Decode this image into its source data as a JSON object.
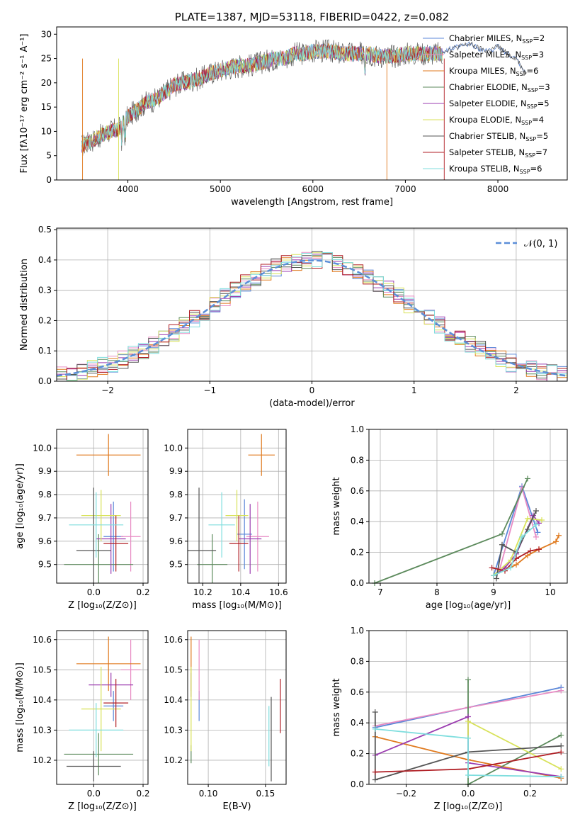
{
  "title": "PLATE=1387, MJD=53118, FIBERID=0422, z=0.082",
  "colors": {
    "Chabrier MILES": "#5b87d8",
    "Salpeter MILES": "#e88cc4",
    "Kroupa MILES": "#e07b20",
    "Chabrier ELODIE": "#5c8a5c",
    "Salpeter ELODIE": "#9b3db0",
    "Kroupa ELODIE": "#d8e25a",
    "Chabrier STELIB": "#555555",
    "Salpeter STELIB": "#b01e24",
    "Kroupa STELIB": "#7fdede"
  },
  "chart_data": [
    {
      "id": "spectrum",
      "type": "line",
      "title": "PLATE=1387, MJD=53118, FIBERID=0422, z=0.082",
      "xlabel": "wavelength [Angstrom, rest frame]",
      "ylabel": "Flux [fλ10⁻¹⁷ erg cm⁻² s⁻¹ A⁻¹]",
      "xlim": [
        3230,
        8750
      ],
      "ylim": [
        0,
        31.5
      ],
      "xticks": [
        "4000",
        "5000",
        "6000",
        "7000",
        "8000"
      ],
      "yticks": [
        "0",
        "5",
        "10",
        "15",
        "20",
        "25",
        "30"
      ],
      "legend_position": "top-right",
      "legend": [
        {
          "label": "Chabrier MILES, N",
          "sub": "SSP",
          "suffix": "=2"
        },
        {
          "label": "Salpeter MILES, N",
          "sub": "SSP",
          "suffix": "=3"
        },
        {
          "label": "Kroupa MILES, N",
          "sub": "SSP",
          "suffix": "=6"
        },
        {
          "label": "Chabrier ELODIE, N",
          "sub": "SSP",
          "suffix": "=3"
        },
        {
          "label": "Salpeter ELODIE, N",
          "sub": "SSP",
          "suffix": "=5"
        },
        {
          "label": "Kroupa ELODIE, N",
          "sub": "SSP",
          "suffix": "=4"
        },
        {
          "label": "Chabrier STELIB, N",
          "sub": "SSP",
          "suffix": "=5"
        },
        {
          "label": "Salpeter STELIB, N",
          "sub": "SSP",
          "suffix": "=7"
        },
        {
          "label": "Kroupa STELIB, N",
          "sub": "SSP",
          "suffix": "=6"
        }
      ],
      "envelope": {
        "x": [
          3500,
          3600,
          3700,
          3800,
          3900,
          4000,
          4100,
          4200,
          4300,
          4400,
          4500,
          4600,
          4700,
          4800,
          4900,
          5000,
          5100,
          5200,
          5300,
          5400,
          5500,
          5600,
          5700,
          5800,
          5900,
          6000,
          6100,
          6200,
          6300,
          6400,
          6500,
          6600,
          6700,
          6800,
          6900,
          7000,
          7100,
          7200,
          7300,
          7400
        ],
        "y": [
          7,
          8,
          9,
          10,
          10.5,
          13,
          14.5,
          16,
          16.5,
          18,
          19.5,
          20,
          20.5,
          21,
          22,
          22.5,
          23,
          23.5,
          23.5,
          24,
          24.5,
          25,
          25,
          26,
          26,
          26.5,
          26.5,
          26.5,
          26,
          26,
          26,
          26,
          25.5,
          25.5,
          25.5,
          26,
          26,
          26,
          26,
          26
        ],
        "model_x": [
          7400,
          7500,
          7600,
          7700,
          7800,
          7900,
          8000,
          8100,
          8200,
          8300
        ],
        "model_y": [
          26.5,
          27,
          27.5,
          28,
          27,
          26.5,
          27.5,
          26,
          25,
          22
        ]
      }
    },
    {
      "id": "residuals",
      "type": "histogram",
      "xlabel": "(data-model)/error",
      "ylabel": "Normed distribution",
      "xlim": [
        -2.5,
        2.5
      ],
      "ylim": [
        0,
        0.505
      ],
      "xticks": [
        "−2",
        "−1",
        "0",
        "1",
        "2"
      ],
      "yticks": [
        "0.0",
        "0.1",
        "0.2",
        "0.3",
        "0.4",
        "0.5"
      ],
      "legend_position": "top-right",
      "reference_label": "𝒩(0, 1)",
      "bin_width": 0.1
    },
    {
      "id": "z-vs-age",
      "type": "scatter",
      "xlabel": "Z [log₁₀(Z/Z⊙)]",
      "ylabel": "age  [log₁₀(age/yr)]",
      "xlim": [
        -0.15,
        0.22
      ],
      "ylim": [
        9.42,
        10.08
      ],
      "xticks": [
        "0.0",
        "0.2"
      ],
      "yticks": [
        "9.5",
        "9.6",
        "9.7",
        "9.8",
        "9.9",
        "10.0"
      ],
      "points": [
        {
          "model": "Chabrier MILES",
          "x": 0.08,
          "xerr": 0.04,
          "y": 9.62,
          "yerr": 0.15
        },
        {
          "model": "Salpeter MILES",
          "x": 0.15,
          "xerr": 0.04,
          "y": 9.62,
          "yerr": 0.15
        },
        {
          "model": "Kroupa MILES",
          "x": 0.06,
          "xerr": 0.13,
          "y": 9.97,
          "yerr": 0.09
        },
        {
          "model": "Chabrier ELODIE",
          "x": 0.02,
          "xerr": 0.14,
          "y": 9.5,
          "yerr": 0.13
        },
        {
          "model": "Salpeter ELODIE",
          "x": 0.07,
          "xerr": 0.06,
          "y": 9.61,
          "yerr": 0.15
        },
        {
          "model": "Kroupa ELODIE",
          "x": 0.03,
          "xerr": 0.08,
          "y": 9.71,
          "yerr": 0.11
        },
        {
          "model": "Chabrier STELIB",
          "x": 0.0,
          "xerr": 0.07,
          "y": 9.56,
          "yerr": 0.27
        },
        {
          "model": "Salpeter STELIB",
          "x": 0.09,
          "xerr": 0.05,
          "y": 9.59,
          "yerr": 0.12
        },
        {
          "model": "Kroupa STELIB",
          "x": 0.01,
          "xerr": 0.11,
          "y": 9.67,
          "yerr": 0.14
        }
      ]
    },
    {
      "id": "mass-vs-age",
      "type": "scatter",
      "xlabel": "mass [log₁₀(M/M⊙)]",
      "ylabel": "",
      "xlim": [
        10.12,
        10.64
      ],
      "ylim": [
        9.42,
        10.08
      ],
      "xticks": [
        "10.2",
        "10.4",
        "10.6"
      ],
      "yticks": [
        "9.5",
        "9.6",
        "9.7",
        "9.8",
        "9.9",
        "10.0"
      ],
      "points": [
        {
          "model": "Chabrier MILES",
          "x": 10.42,
          "xerr": 0.04,
          "y": 9.63,
          "yerr": 0.15
        },
        {
          "model": "Salpeter MILES",
          "x": 10.49,
          "xerr": 0.06,
          "y": 9.62,
          "yerr": 0.15
        },
        {
          "model": "Kroupa MILES",
          "x": 10.51,
          "xerr": 0.07,
          "y": 9.97,
          "yerr": 0.09
        },
        {
          "model": "Chabrier ELODIE",
          "x": 10.25,
          "xerr": 0.08,
          "y": 9.5,
          "yerr": 0.13
        },
        {
          "model": "Salpeter ELODIE",
          "x": 10.45,
          "xerr": 0.06,
          "y": 9.61,
          "yerr": 0.15
        },
        {
          "model": "Kroupa ELODIE",
          "x": 10.38,
          "xerr": 0.06,
          "y": 9.71,
          "yerr": 0.11
        },
        {
          "model": "Chabrier STELIB",
          "x": 10.18,
          "xerr": 0.09,
          "y": 9.56,
          "yerr": 0.27
        },
        {
          "model": "Salpeter STELIB",
          "x": 10.39,
          "xerr": 0.05,
          "y": 9.59,
          "yerr": 0.12
        },
        {
          "model": "Kroupa STELIB",
          "x": 10.3,
          "xerr": 0.07,
          "y": 9.67,
          "yerr": 0.14
        }
      ]
    },
    {
      "id": "age-vs-weight",
      "type": "line",
      "xlabel": "age  [log₁₀(age/yr)]",
      "ylabel": "mass weight",
      "xlim": [
        6.8,
        10.3
      ],
      "ylim": [
        0,
        1.0
      ],
      "xticks": [
        "7",
        "8",
        "9",
        "10"
      ],
      "yticks": [
        "0.0",
        "0.2",
        "0.4",
        "0.6",
        "0.8",
        "1.0"
      ],
      "series": [
        {
          "model": "Chabrier MILES",
          "x": [
            9.0,
            9.5,
            9.78
          ],
          "y": [
            0.05,
            0.63,
            0.33
          ]
        },
        {
          "model": "Salpeter MILES",
          "x": [
            9.1,
            9.5,
            9.75
          ],
          "y": [
            0.08,
            0.62,
            0.3
          ]
        },
        {
          "model": "Kroupa MILES",
          "x": [
            9.0,
            9.4,
            9.6,
            9.8,
            10.1,
            10.15
          ],
          "y": [
            0.05,
            0.12,
            0.18,
            0.22,
            0.27,
            0.31
          ]
        },
        {
          "model": "Chabrier ELODIE",
          "x": [
            6.9,
            9.15,
            9.6
          ],
          "y": [
            0.0,
            0.32,
            0.68
          ]
        },
        {
          "model": "Salpeter ELODIE",
          "x": [
            9.0,
            9.2,
            9.4,
            9.7,
            9.8
          ],
          "y": [
            0.05,
            0.1,
            0.19,
            0.44,
            0.39
          ]
        },
        {
          "model": "Kroupa ELODIE",
          "x": [
            9.0,
            9.3,
            9.6,
            9.85
          ],
          "y": [
            0.05,
            0.15,
            0.42,
            0.41
          ]
        },
        {
          "model": "Chabrier STELIB",
          "x": [
            9.05,
            9.15,
            9.4,
            9.6,
            9.75
          ],
          "y": [
            0.03,
            0.25,
            0.2,
            0.35,
            0.47
          ]
        },
        {
          "model": "Salpeter STELIB",
          "x": [
            8.97,
            9.2,
            9.4,
            9.65,
            9.8
          ],
          "y": [
            0.1,
            0.08,
            0.16,
            0.21,
            0.22
          ]
        },
        {
          "model": "Kroupa STELIB",
          "x": [
            9.0,
            9.3,
            9.5,
            9.75
          ],
          "y": [
            0.05,
            0.1,
            0.3,
            0.38
          ]
        }
      ]
    },
    {
      "id": "z-vs-mass",
      "type": "scatter",
      "xlabel": "Z [log₁₀(Z/Z⊙)]",
      "ylabel": "mass [log₁₀(M/M⊙)]",
      "xlim": [
        -0.15,
        0.22
      ],
      "ylim": [
        10.12,
        10.63
      ],
      "xticks": [
        "0.0",
        "0.2"
      ],
      "yticks": [
        "10.2",
        "10.3",
        "10.4",
        "10.5",
        "10.6"
      ],
      "points": [
        {
          "model": "Chabrier MILES",
          "x": 0.08,
          "xerr": 0.04,
          "y": 10.38,
          "yerr": 0.05
        },
        {
          "model": "Salpeter MILES",
          "x": 0.15,
          "xerr": 0.04,
          "y": 10.5,
          "yerr": 0.1
        },
        {
          "model": "Kroupa MILES",
          "x": 0.06,
          "xerr": 0.13,
          "y": 10.52,
          "yerr": 0.09
        },
        {
          "model": "Chabrier ELODIE",
          "x": 0.02,
          "xerr": 0.14,
          "y": 10.22,
          "yerr": 0.07
        },
        {
          "model": "Salpeter ELODIE",
          "x": 0.07,
          "xerr": 0.09,
          "y": 10.45,
          "yerr": 0.04
        },
        {
          "model": "Kroupa ELODIE",
          "x": 0.03,
          "xerr": 0.08,
          "y": 10.37,
          "yerr": 0.14
        },
        {
          "model": "Chabrier STELIB",
          "x": 0.0,
          "xerr": 0.11,
          "y": 10.18,
          "yerr": 0.05
        },
        {
          "model": "Salpeter STELIB",
          "x": 0.09,
          "xerr": 0.05,
          "y": 10.39,
          "yerr": 0.08
        },
        {
          "model": "Kroupa STELIB",
          "x": 0.01,
          "xerr": 0.11,
          "y": 10.3,
          "yerr": 0.09
        }
      ]
    },
    {
      "id": "ebv-vs-mass",
      "type": "scatter",
      "xlabel": "E(B-V)",
      "ylabel": "",
      "xlim": [
        0.082,
        0.168
      ],
      "ylim": [
        10.12,
        10.63
      ],
      "xticks": [
        "0.10",
        "0.15"
      ],
      "yticks": [
        "10.2",
        "10.3",
        "10.4",
        "10.5",
        "10.6"
      ],
      "points": [
        {
          "model": "Chabrier MILES",
          "x": 0.092,
          "xerr": 0,
          "y": 10.38,
          "yerr": 0.05
        },
        {
          "model": "Salpeter MILES",
          "x": 0.092,
          "xerr": 0,
          "y": 10.5,
          "yerr": 0.1
        },
        {
          "model": "Kroupa MILES",
          "x": 0.085,
          "xerr": 0,
          "y": 10.52,
          "yerr": 0.09
        },
        {
          "model": "Chabrier ELODIE",
          "x": 0.085,
          "xerr": 0,
          "y": 10.22,
          "yerr": 0.03
        },
        {
          "model": "Salpeter ELODIE",
          "x": 0.085,
          "xerr": 0,
          "y": 10.45,
          "yerr": 0.04
        },
        {
          "model": "Kroupa ELODIE",
          "x": 0.085,
          "xerr": 0,
          "y": 10.37,
          "yerr": 0.14
        },
        {
          "model": "Chabrier STELIB",
          "x": 0.155,
          "xerr": 0,
          "y": 10.27,
          "yerr": 0.14
        },
        {
          "model": "Salpeter STELIB",
          "x": 0.163,
          "xerr": 0,
          "y": 10.38,
          "yerr": 0.09
        },
        {
          "model": "Kroupa STELIB",
          "x": 0.153,
          "xerr": 0,
          "y": 10.28,
          "yerr": 0.1
        }
      ]
    },
    {
      "id": "z-vs-weight",
      "type": "line",
      "xlabel": "Z [log₁₀(Z/Z⊙)]",
      "ylabel": "mass weight",
      "xlim": [
        -0.32,
        0.32
      ],
      "ylim": [
        0,
        1.0
      ],
      "xticks": [
        "−0.2",
        "0.0",
        "0.2"
      ],
      "yticks": [
        "0.0",
        "0.2",
        "0.4",
        "0.6",
        "0.8",
        "1.0"
      ],
      "series": [
        {
          "model": "Chabrier MILES",
          "x": [
            -0.3,
            0.0,
            0.3
          ],
          "y": [
            0.37,
            0.5,
            0.63
          ]
        },
        {
          "model": "Salpeter MILES",
          "x": [
            -0.3,
            0.0,
            0.3
          ],
          "y": [
            0.38,
            0.5,
            0.61
          ]
        },
        {
          "model": "Kroupa MILES",
          "x": [
            -0.3,
            0.0,
            0.3
          ],
          "y": [
            0.31,
            0.16,
            0.04
          ]
        },
        {
          "model": "Chabrier ELODIE",
          "x": [
            0.0,
            0.0,
            0.3
          ],
          "y": [
            0.68,
            0.0,
            0.32
          ]
        },
        {
          "model": "Salpeter ELODIE",
          "x": [
            -0.3,
            0.0,
            0.0,
            0.3
          ],
          "y": [
            0.19,
            0.44,
            0.14,
            0.05
          ]
        },
        {
          "model": "Kroupa ELODIE",
          "x": [
            0.0,
            0.0,
            0.3
          ],
          "y": [
            0.3,
            0.41,
            0.1
          ]
        },
        {
          "model": "Chabrier STELIB",
          "x": [
            -0.3,
            -0.3,
            0.0,
            0.3
          ],
          "y": [
            0.47,
            0.03,
            0.21,
            0.25
          ]
        },
        {
          "model": "Salpeter STELIB",
          "x": [
            -0.3,
            0.0,
            0.3
          ],
          "y": [
            0.08,
            0.1,
            0.21
          ]
        },
        {
          "model": "Kroupa STELIB",
          "x": [
            -0.3,
            0.0,
            0.0,
            0.3
          ],
          "y": [
            0.36,
            0.3,
            0.06,
            0.05
          ]
        }
      ]
    }
  ]
}
